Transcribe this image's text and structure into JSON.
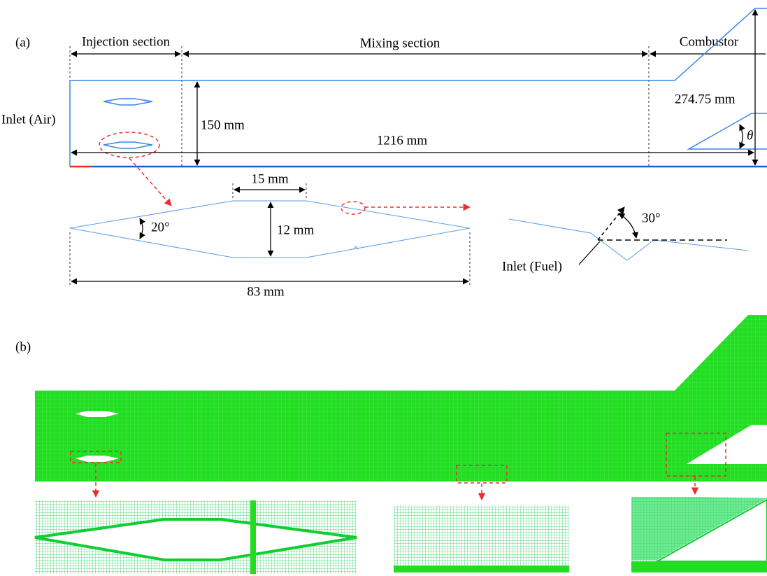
{
  "panel_a": {
    "label": "(a)",
    "sections": [
      "Injection section",
      "Mixing section",
      "Combustor"
    ],
    "inlet_air": "Inlet (Air)",
    "height": "150 mm",
    "length": "1216 mm",
    "outlet_height": "274.75 mm",
    "angle_symbol": "θ",
    "injector": {
      "flat_length": "15 mm",
      "thickness": "12 mm",
      "half_angle": "20°",
      "chord": "83 mm"
    },
    "fuel_inlet": {
      "angle": "30°",
      "label": "Inlet (Fuel)"
    }
  },
  "panel_b": {
    "label": "(b)"
  }
}
